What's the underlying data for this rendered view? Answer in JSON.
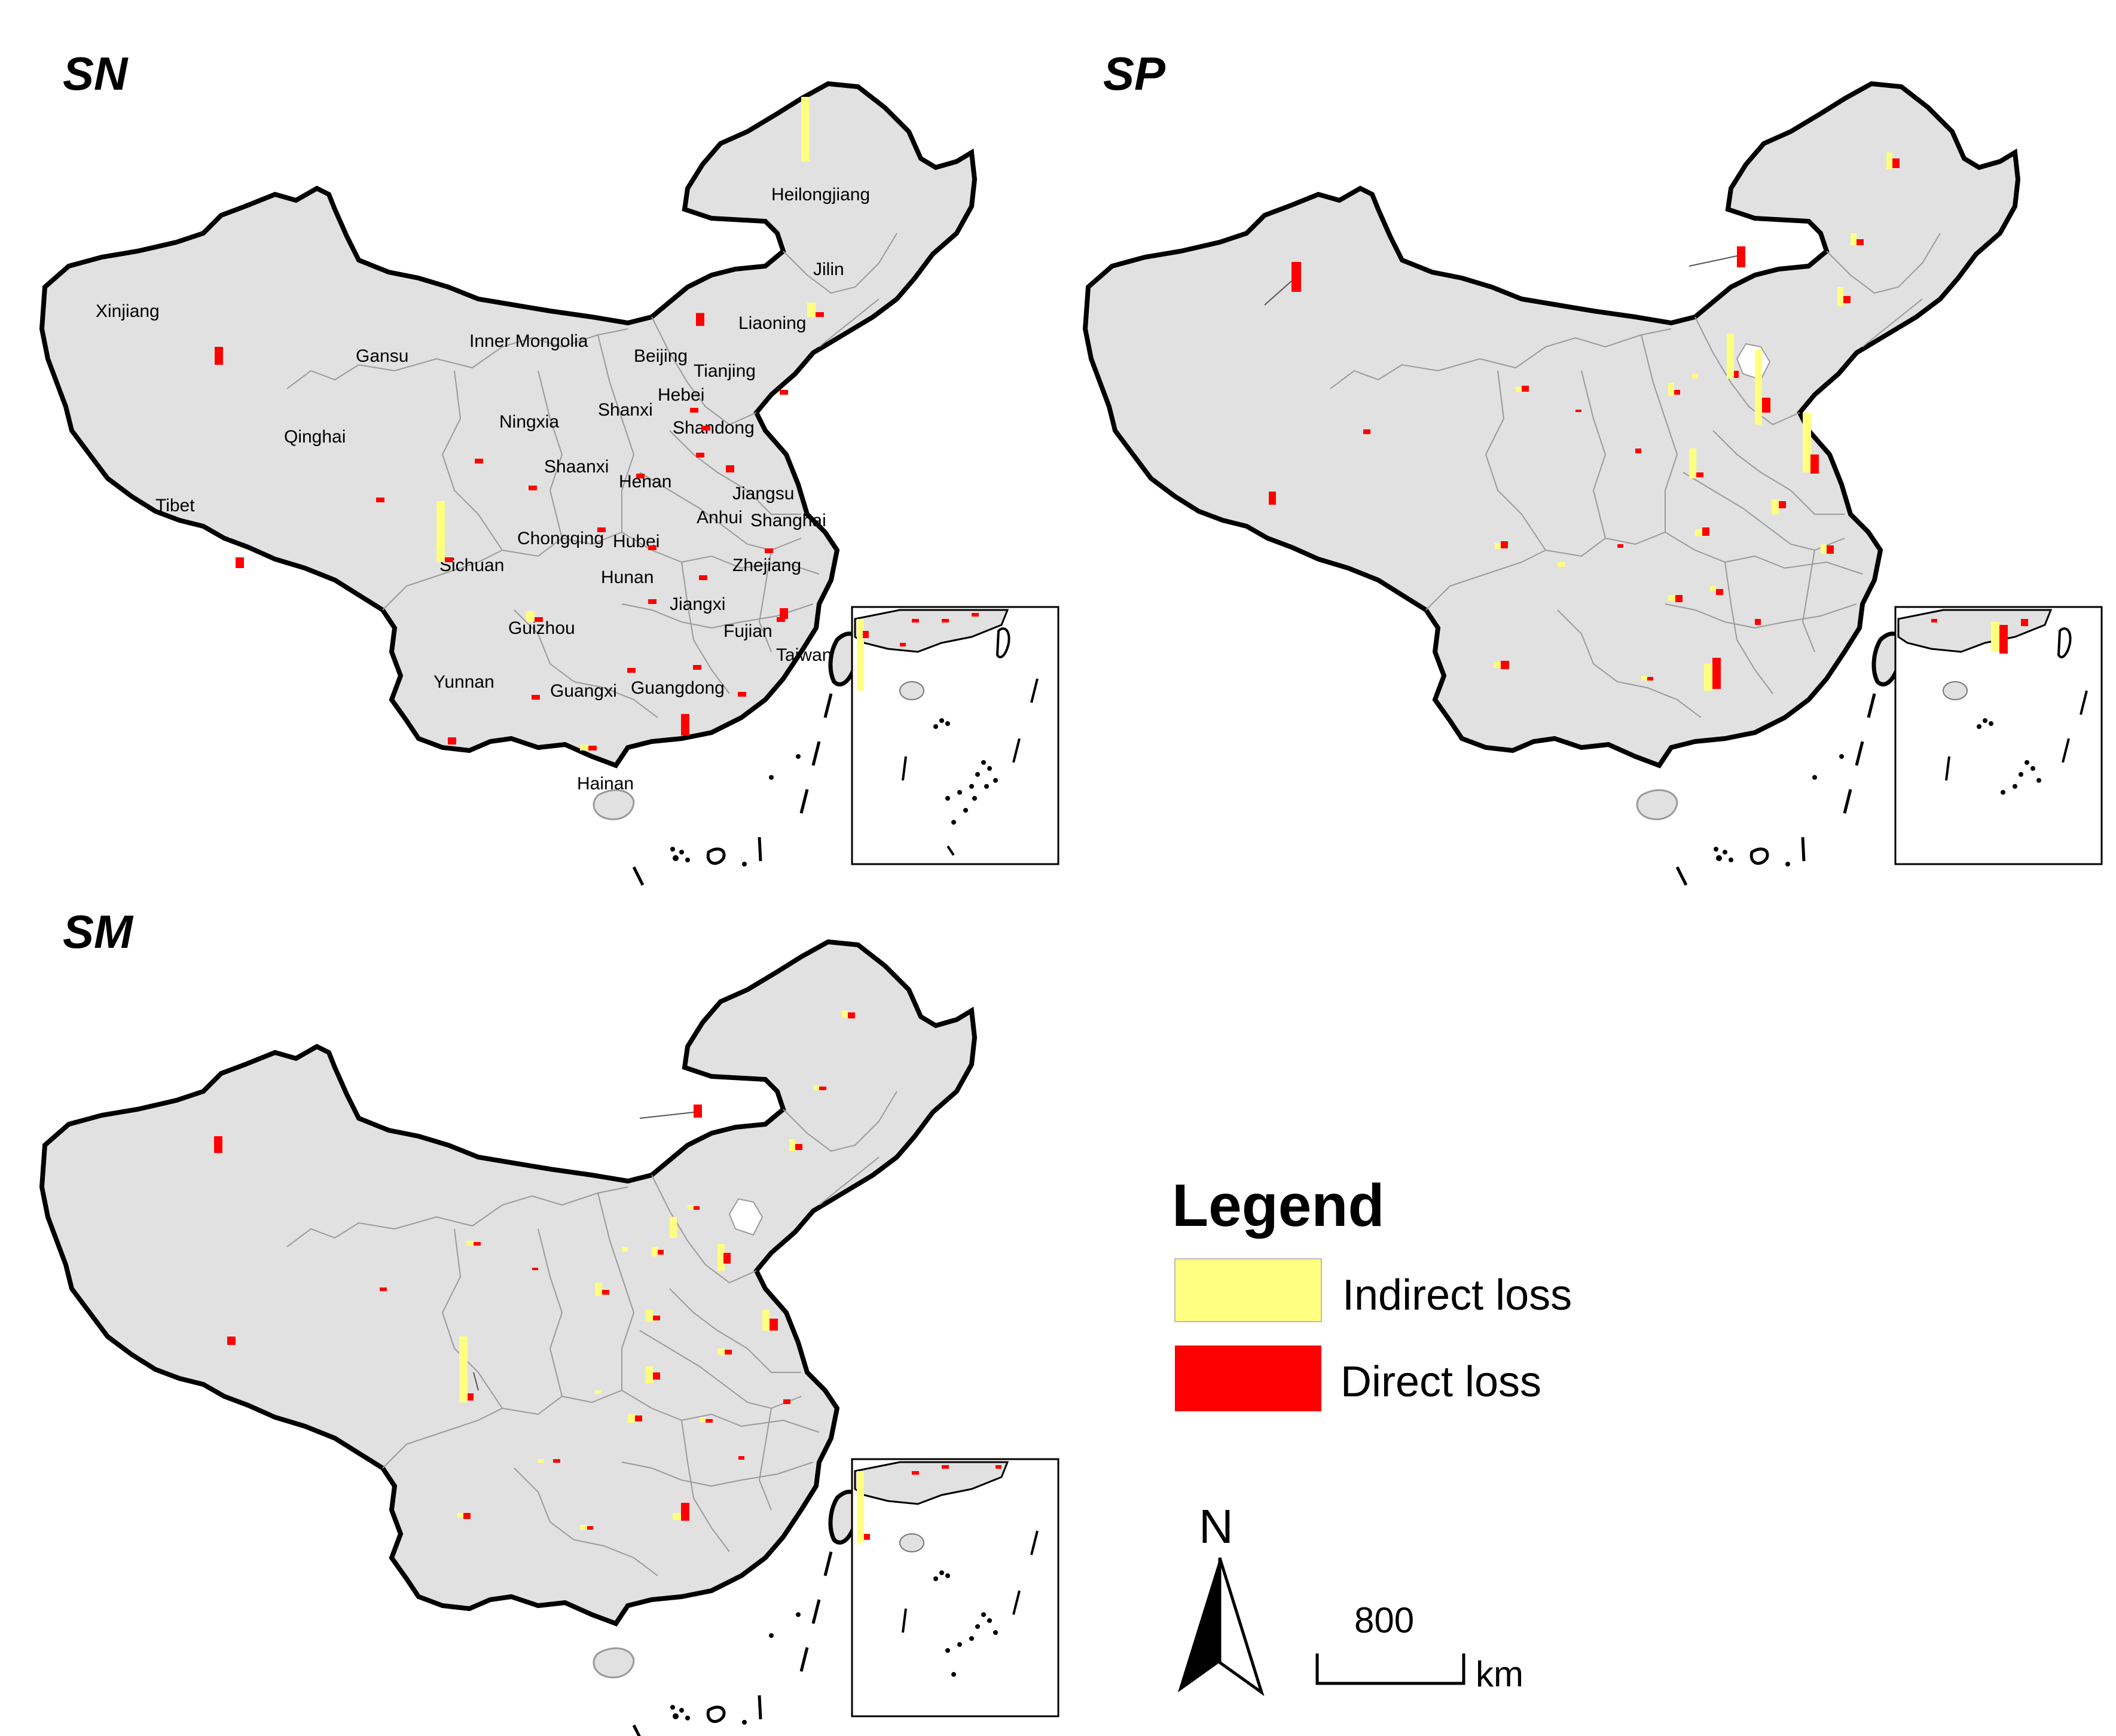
{
  "panels": [
    {
      "id": "SN",
      "title": "SN",
      "labels": [
        "Heilongjiang",
        "Jilin",
        "Liaoning",
        "Xinjiang",
        "Inner Mongolia",
        "Gansu",
        "Beijing",
        "Tianjing",
        "Hebei",
        "Shanxi",
        "Shandong",
        "Ningxia",
        "Qinghai",
        "Shaanxi",
        "Henan",
        "Jiangsu",
        "Anhui",
        "Shanghai",
        "Tibet",
        "Chongqing",
        "Hubei",
        "Sichuan",
        "Zhejiang",
        "Hunan",
        "Jiangxi",
        "Guizhou",
        "Fujian",
        "Taiwan",
        "Yunnan",
        "Guangxi",
        "Guangdong",
        "Hainan"
      ],
      "bars": [
        {
          "indirect": 0.9,
          "direct": 0.0
        },
        {
          "indirect": 0.2,
          "direct": 0.05
        },
        {
          "indirect": 0.0,
          "direct": 0.05
        },
        {
          "indirect": 0.0,
          "direct": 0.25
        },
        {
          "indirect": 0.0,
          "direct": 0.18
        },
        {
          "indirect": 0.0,
          "direct": 0.05
        },
        {
          "indirect": 0.0,
          "direct": 0.05
        },
        {
          "indirect": 0.0,
          "direct": 0.05
        },
        {
          "indirect": 0.0,
          "direct": 0.05
        },
        {
          "indirect": 0.0,
          "direct": 0.05
        },
        {
          "indirect": 0.0,
          "direct": 0.1
        },
        {
          "indirect": 0.0,
          "direct": 0.05
        },
        {
          "indirect": 0.0,
          "direct": 0.05
        },
        {
          "indirect": 0.0,
          "direct": 0.05
        },
        {
          "indirect": 0.0,
          "direct": 0.05
        },
        {
          "indirect": 0.0,
          "direct": 0.05
        },
        {
          "indirect": 0.0,
          "direct": 0.05
        },
        {
          "indirect": 0.0,
          "direct": 0.15
        },
        {
          "indirect": 0.0,
          "direct": 0.15
        },
        {
          "indirect": 0.15,
          "direct": 0.05
        },
        {
          "indirect": 0.0,
          "direct": 0.05
        },
        {
          "indirect": 0.85,
          "direct": 0.05
        },
        {
          "indirect": 0.0,
          "direct": 0.05
        },
        {
          "indirect": 0.0,
          "direct": 0.05
        },
        {
          "indirect": 0.0,
          "direct": 0.05
        },
        {
          "indirect": 0.0,
          "direct": 0.05
        },
        {
          "indirect": 0.0,
          "direct": 0.05
        },
        {
          "indirect": 0.0,
          "direct": 0.0
        },
        {
          "indirect": 0.0,
          "direct": 0.1
        },
        {
          "indirect": 0.08,
          "direct": 0.05
        },
        {
          "indirect": 0.0,
          "direct": 0.3
        },
        {
          "indirect": 0.0,
          "direct": 0.0
        }
      ]
    },
    {
      "id": "SP",
      "title": "SP",
      "labels": [],
      "bars": []
    },
    {
      "id": "SM",
      "title": "SM",
      "labels": [],
      "bars": []
    }
  ],
  "legend": {
    "title": "Legend",
    "items": [
      {
        "label": "Indirect loss",
        "color": "#ffff80"
      },
      {
        "label": "Direct loss",
        "color": "#ff0000"
      }
    ]
  },
  "north_arrow": {
    "label": "N"
  },
  "scale_bar": {
    "value": "800",
    "unit": "km"
  },
  "colors": {
    "land": "#e1e1e1",
    "border": "#000000",
    "province_line": "#9a9a9a",
    "indirect": "#ffff80",
    "direct": "#ff0000"
  }
}
